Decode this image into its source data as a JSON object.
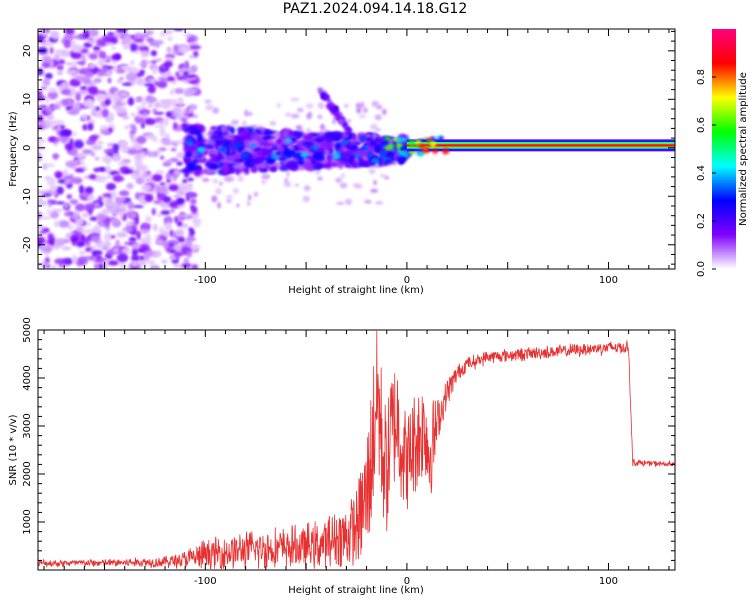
{
  "title": "PAZ1.2024.094.14.18.G12",
  "chart_data": [
    {
      "type": "heatmap",
      "xlabel": "Height of straight line (km)",
      "ylabel": "Frequency (Hz)",
      "xlim": [
        -183,
        133
      ],
      "ylim": [
        -25,
        24.5
      ],
      "xticks": [
        -100,
        0,
        100
      ],
      "xtick_labels": [
        "-100",
        "0",
        "100"
      ],
      "yticks": [
        -20,
        -10,
        0,
        10,
        20
      ],
      "ytick_labels": [
        "-20",
        "-10",
        "0",
        "10",
        "20"
      ],
      "colorbar": {
        "label": "Normalized spectral amplitude",
        "ticks": [
          0.0,
          0.2,
          0.4,
          0.6,
          0.8
        ],
        "tick_labels": [
          "0.0",
          "0.2",
          "0.4",
          "0.6",
          "0.8"
        ],
        "range": [
          0,
          1
        ],
        "colormap": [
          "#ffffff",
          "#8000ff",
          "#0000ff",
          "#00ffff",
          "#00ff00",
          "#ffff00",
          "#ff0000",
          "#ff0080"
        ]
      },
      "features": {
        "carrier_line": {
          "x_start": 0,
          "x_end": 133,
          "frequency": 0.5
        },
        "noise_region": {
          "x_start": -183,
          "x_end": -110,
          "frequency_range": [
            -25,
            24.5
          ]
        },
        "scintillation_band": {
          "x_start": -110,
          "x_end": 0,
          "frequency_range": [
            -7,
            5
          ]
        },
        "diagonal_streak": {
          "x": [
            -43,
            -28
          ],
          "frequency": [
            12,
            3
          ]
        }
      },
      "grid": false
    },
    {
      "type": "line",
      "xlabel": "Height of straight line (km)",
      "ylabel": "SNR (10 * v/v)",
      "xlim": [
        -183,
        133
      ],
      "ylim": [
        0,
        5000
      ],
      "xticks": [
        -100,
        0,
        100
      ],
      "xtick_labels": [
        "-100",
        "0",
        "100"
      ],
      "yticks": [
        1000,
        2000,
        3000,
        4000,
        5000
      ],
      "ytick_labels": [
        "1000",
        "2000",
        "3000",
        "4000",
        "5000"
      ],
      "color": "#e83030",
      "grid": false,
      "series": [
        {
          "x": [
            -183,
            -160,
            -140,
            -120,
            -110,
            -100,
            -90,
            -80,
            -70,
            -60,
            -50,
            -40,
            -30,
            -25,
            -20,
            -17,
            -15,
            -12,
            -10,
            -8,
            -5,
            -2,
            0,
            3,
            6,
            9,
            11,
            13,
            16,
            20,
            25,
            30,
            40,
            60,
            80,
            100,
            110,
            112,
            120,
            133
          ],
          "y": [
            150,
            150,
            160,
            180,
            240,
            330,
            400,
            450,
            480,
            500,
            520,
            600,
            700,
            900,
            1500,
            2600,
            3800,
            2500,
            2000,
            2800,
            3200,
            2500,
            2200,
            2600,
            2800,
            3000,
            2400,
            2700,
            3200,
            3700,
            4100,
            4300,
            4450,
            4520,
            4580,
            4650,
            4650,
            2250,
            2230,
            2200
          ],
          "spread": [
            80,
            80,
            90,
            120,
            200,
            350,
            380,
            400,
            430,
            430,
            480,
            520,
            650,
            800,
            1300,
            1600,
            1800,
            1500,
            1300,
            1400,
            1300,
            1200,
            1000,
            1100,
            1100,
            1000,
            1100,
            900,
            400,
            300,
            180,
            150,
            140,
            140,
            140,
            140,
            140,
            80,
            60,
            60
          ]
        }
      ]
    }
  ]
}
